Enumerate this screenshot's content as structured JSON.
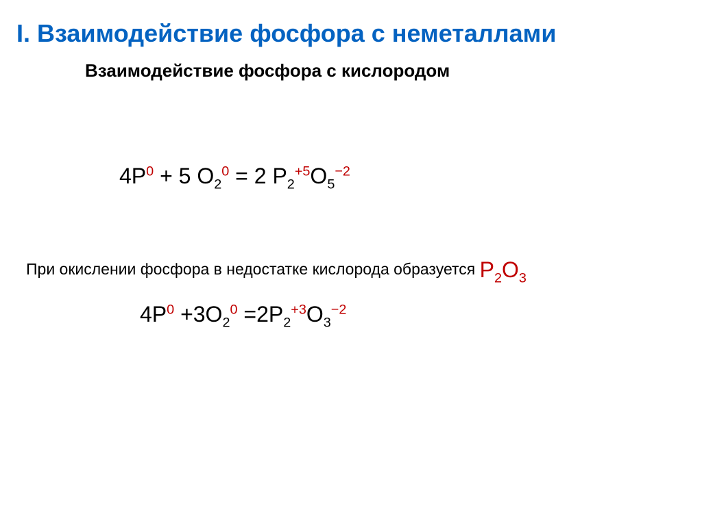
{
  "colors": {
    "title": "#0563c1",
    "black": "#000000",
    "accent": "#c00000"
  },
  "fonts": {
    "title_size": 36,
    "subtitle_size": 26,
    "equation_size": 32,
    "desc_size": 23,
    "title_weight": "bold",
    "subtitle_weight": "bold"
  },
  "title": "I. Взаимодействие фосфора с неметаллами",
  "subtitle": "Взаимодействие фосфора с кислородом",
  "eq1": {
    "coef1": "4",
    "el1": "P",
    "sup1": "0",
    "plus": " + ",
    "coef2": "5",
    "space2": " ",
    "el2": "O",
    "sub2": "2",
    "sup2": "0",
    "eq": " = ",
    "coef3": "2",
    "space3": " ",
    "el3a": "P",
    "sub3a": "2",
    "sup3a": "+5",
    "el3b": "O",
    "sub3b": "5",
    "sup3b": "−2"
  },
  "desc": {
    "text": "При окислении фосфора в недостатке кислорода образуется   ",
    "formula_el1": "P",
    "formula_sub1": "2",
    "formula_el2": "O",
    "formula_sub2": "3"
  },
  "eq2": {
    "coef1": "4",
    "el1": "P",
    "sup1": "0",
    "plus": " +",
    "coef2": "3",
    "el2": "O",
    "sub2": "2",
    "sup2": "0",
    "eq": " =",
    "coef3": "2",
    "el3a": "P",
    "sub3a": "2",
    "sup3a": "+3",
    "el3b": "O",
    "sub3b": "3",
    "sup3b": "−2"
  }
}
